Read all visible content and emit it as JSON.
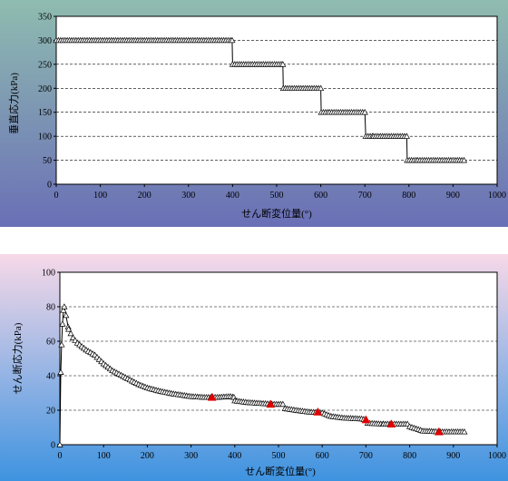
{
  "chart_data": [
    {
      "type": "line",
      "title": "",
      "xlabel": "せん断変位量(°)",
      "ylabel": "垂直応力(kPa)",
      "xlim": [
        0,
        1000
      ],
      "ylim": [
        0,
        350
      ],
      "xticks": [
        "0",
        "100",
        "200",
        "300",
        "400",
        "500",
        "600",
        "700",
        "800",
        "900",
        "1000"
      ],
      "yticks": [
        "0",
        "50",
        "100",
        "150",
        "200",
        "250",
        "300",
        "350"
      ],
      "grid": "horizontal-dashed",
      "marker": "open-triangle",
      "line_color": "#000000",
      "background_gradient": [
        "#8fbcb0",
        "#6a6fb6"
      ],
      "series": [
        {
          "name": "",
          "x": [
            0,
            10,
            20,
            40,
            60,
            80,
            100,
            150,
            200,
            250,
            300,
            350,
            399,
            400,
            420,
            440,
            460,
            480,
            500,
            514,
            515,
            530,
            550,
            570,
            590,
            600,
            601,
            620,
            640,
            660,
            680,
            700,
            702,
            720,
            740,
            760,
            780,
            795,
            796,
            820,
            840,
            860,
            880,
            900,
            925
          ],
          "y": [
            300,
            300,
            300,
            300,
            300,
            300,
            300,
            300,
            300,
            300,
            300,
            300,
            300,
            250,
            250,
            250,
            250,
            250,
            250,
            250,
            200,
            200,
            200,
            200,
            200,
            200,
            150,
            150,
            150,
            150,
            150,
            150,
            100,
            100,
            100,
            100,
            100,
            100,
            50,
            50,
            50,
            50,
            50,
            50,
            50
          ]
        }
      ]
    },
    {
      "type": "line",
      "title": "",
      "xlabel": "せん断変位量(°)",
      "ylabel": "せん断応力(kPa)",
      "xlim": [
        0,
        1000
      ],
      "ylim": [
        0,
        100
      ],
      "xticks": [
        "0",
        "100",
        "200",
        "300",
        "400",
        "500",
        "600",
        "700",
        "800",
        "900",
        "1000"
      ],
      "yticks": [
        "0",
        "20",
        "40",
        "60",
        "80",
        "100"
      ],
      "grid": "horizontal-dashed",
      "marker": "open-triangle",
      "line_color": "#000000",
      "highlight_color": "#e00000",
      "background_gradient": [
        "#f7d9e8",
        "#3e93e0"
      ],
      "series": [
        {
          "name": "",
          "x": [
            0,
            2,
            4,
            6,
            8,
            10,
            14,
            20,
            30,
            40,
            50,
            60,
            80,
            100,
            120,
            150,
            180,
            200,
            230,
            260,
            300,
            330,
            360,
            390,
            398,
            400,
            430,
            460,
            490,
            510,
            515,
            540,
            570,
            600,
            620,
            650,
            690,
            700,
            704,
            740,
            770,
            795,
            800,
            830,
            870,
            900,
            925
          ],
          "y": [
            0,
            42,
            58,
            70,
            78,
            80,
            75,
            67,
            62,
            59,
            57,
            55,
            52,
            47,
            43,
            39,
            35,
            33,
            31,
            29.5,
            28,
            27.5,
            27.5,
            28,
            27.5,
            25.5,
            24.5,
            24,
            23.5,
            23.5,
            21,
            20,
            19,
            18.5,
            16.5,
            15.5,
            15,
            14.5,
            12.5,
            12,
            12,
            12,
            10.5,
            8,
            7.5,
            7.5,
            7.5
          ]
        }
      ],
      "highlighted_points": [
        {
          "x": 348,
          "y": 27.5
        },
        {
          "x": 482,
          "y": 23.5
        },
        {
          "x": 590,
          "y": 19
        },
        {
          "x": 700,
          "y": 14.5
        },
        {
          "x": 758,
          "y": 12
        },
        {
          "x": 867,
          "y": 7.5
        }
      ]
    }
  ]
}
